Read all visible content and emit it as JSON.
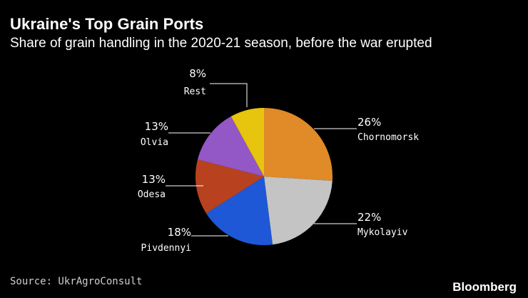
{
  "header": {
    "title": "Ukraine's Top Grain Ports",
    "subtitle": "Share of grain handling in the 2020-21 season, before the war erupted"
  },
  "footer": {
    "source": "Source: UkrAgroConsult",
    "brand": "Bloomberg"
  },
  "chart_data": {
    "type": "pie",
    "title": "Ukraine's Top Grain Ports",
    "subtitle": "Share of grain handling in the 2020-21 season, before the war erupted",
    "unit": "%",
    "slices": [
      {
        "name": "Chornomorsk",
        "value": 26,
        "label": "26%",
        "color": "#e08a28"
      },
      {
        "name": "Mykolayiv",
        "value": 22,
        "label": "22%",
        "color": "#c4c4c4"
      },
      {
        "name": "Pivdennyi",
        "value": 18,
        "label": "18%",
        "color": "#1f58d6"
      },
      {
        "name": "Odesa",
        "value": 13,
        "label": "13%",
        "color": "#b8421f"
      },
      {
        "name": "Olvia",
        "value": 13,
        "label": "13%",
        "color": "#9457c6"
      },
      {
        "name": "Rest",
        "value": 8,
        "label": "8%",
        "color": "#e7c40d"
      }
    ]
  }
}
